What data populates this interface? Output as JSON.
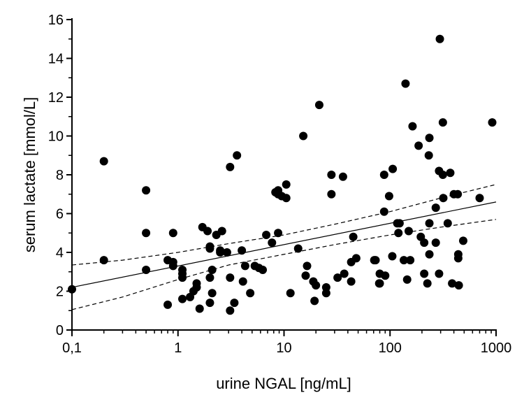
{
  "chart_data": {
    "type": "scatter",
    "title": "",
    "xlabel": "urine NGAL [ng/mL]",
    "ylabel": "serum lactate [mmol/L]",
    "xscale": "log",
    "xlim": [
      0.1,
      1000
    ],
    "ylim": [
      0,
      16
    ],
    "xticks": [
      0.1,
      1,
      10,
      100,
      1000
    ],
    "xtick_labels": [
      "0,1",
      "1",
      "10",
      "100",
      "1000"
    ],
    "yticks": [
      0,
      2,
      4,
      6,
      8,
      10,
      12,
      14,
      16
    ],
    "ytick_labels": [
      "0",
      "2",
      "4",
      "6",
      "8",
      "10",
      "12",
      "14",
      "16"
    ],
    "grid": false,
    "marker_color": "#000000",
    "points": [
      [
        0.1,
        2.1
      ],
      [
        0.2,
        8.7
      ],
      [
        0.2,
        3.6
      ],
      [
        0.5,
        7.2
      ],
      [
        0.5,
        5.0
      ],
      [
        0.5,
        3.1
      ],
      [
        0.9,
        5.0
      ],
      [
        0.8,
        1.3
      ],
      [
        0.8,
        3.6
      ],
      [
        0.9,
        3.5
      ],
      [
        0.9,
        3.3
      ],
      [
        1.1,
        3.1
      ],
      [
        1.1,
        2.9
      ],
      [
        1.1,
        2.7
      ],
      [
        1.1,
        1.6
      ],
      [
        1.3,
        1.7
      ],
      [
        1.4,
        2.0
      ],
      [
        1.5,
        2.4
      ],
      [
        1.5,
        2.2
      ],
      [
        1.6,
        1.1
      ],
      [
        1.7,
        5.3
      ],
      [
        1.9,
        5.1
      ],
      [
        2.0,
        4.3
      ],
      [
        2.0,
        4.2
      ],
      [
        2.0,
        2.7
      ],
      [
        2.1,
        1.9
      ],
      [
        2.0,
        1.4
      ],
      [
        2.1,
        3.1
      ],
      [
        2.3,
        4.9
      ],
      [
        2.5,
        4.1
      ],
      [
        2.5,
        4.0
      ],
      [
        2.6,
        5.1
      ],
      [
        2.9,
        4.0
      ],
      [
        3.1,
        8.4
      ],
      [
        3.1,
        2.7
      ],
      [
        3.1,
        1.0
      ],
      [
        3.4,
        1.4
      ],
      [
        3.6,
        9.0
      ],
      [
        4.0,
        4.1
      ],
      [
        4.1,
        2.5
      ],
      [
        4.3,
        3.3
      ],
      [
        4.8,
        1.9
      ],
      [
        5.3,
        3.3
      ],
      [
        5.8,
        3.2
      ],
      [
        6.3,
        3.1
      ],
      [
        6.8,
        4.9
      ],
      [
        7.7,
        4.5
      ],
      [
        8.3,
        7.1
      ],
      [
        8.8,
        7.2
      ],
      [
        8.8,
        7.0
      ],
      [
        8.8,
        5.0
      ],
      [
        9.5,
        6.9
      ],
      [
        10.5,
        7.5
      ],
      [
        10.5,
        6.8
      ],
      [
        11.5,
        1.9
      ],
      [
        13.6,
        4.2
      ],
      [
        15.2,
        10.0
      ],
      [
        16,
        2.8
      ],
      [
        16.5,
        3.3
      ],
      [
        18.9,
        2.5
      ],
      [
        19.4,
        1.5
      ],
      [
        20,
        2.3
      ],
      [
        21.5,
        11.6
      ],
      [
        25,
        2.2
      ],
      [
        25,
        1.9
      ],
      [
        28,
        8.0
      ],
      [
        28,
        7.0
      ],
      [
        32,
        2.7
      ],
      [
        36,
        7.9
      ],
      [
        37,
        2.9
      ],
      [
        43,
        3.5
      ],
      [
        48,
        3.7
      ],
      [
        45,
        4.8
      ],
      [
        43,
        2.5
      ],
      [
        73,
        3.6
      ],
      [
        79,
        2.4
      ],
      [
        88,
        8.0
      ],
      [
        88,
        6.1
      ],
      [
        106,
        8.3
      ],
      [
        98,
        6.9
      ],
      [
        117,
        5.5
      ],
      [
        123,
        5.5
      ],
      [
        120,
        5.0
      ],
      [
        150,
        5.1
      ],
      [
        140,
        12.7
      ],
      [
        163,
        10.5
      ],
      [
        186,
        9.5
      ],
      [
        235,
        9.9
      ],
      [
        232,
        9.0
      ],
      [
        295,
        15.0
      ],
      [
        315,
        10.7
      ],
      [
        290,
        8.2
      ],
      [
        315,
        8.0
      ],
      [
        370,
        8.1
      ],
      [
        270,
        6.3
      ],
      [
        318,
        6.8
      ],
      [
        400,
        7.0
      ],
      [
        435,
        7.0
      ],
      [
        700,
        6.8
      ],
      [
        920,
        10.7
      ],
      [
        235,
        5.5
      ],
      [
        350,
        5.5
      ],
      [
        270,
        4.5
      ],
      [
        195,
        4.8
      ],
      [
        210,
        4.5
      ],
      [
        235,
        3.9
      ],
      [
        490,
        4.6
      ],
      [
        440,
        3.9
      ],
      [
        440,
        3.7
      ],
      [
        210,
        2.9
      ],
      [
        290,
        2.9
      ],
      [
        225,
        2.4
      ],
      [
        385,
        2.4
      ],
      [
        445,
        2.3
      ],
      [
        135,
        3.6
      ],
      [
        155,
        3.6
      ],
      [
        145,
        2.6
      ],
      [
        105,
        3.8
      ],
      [
        71,
        3.6
      ],
      [
        80,
        2.9
      ],
      [
        90,
        2.8
      ],
      [
        80,
        2.4
      ]
    ],
    "regression": {
      "intercept": 3.3,
      "slope_per_log10": 1.1,
      "style": "solid"
    },
    "confidence_band": {
      "style": "dashed",
      "x": [
        0.1,
        0.3,
        1,
        3,
        10,
        30,
        100,
        300,
        1000
      ],
      "upper": [
        3.35,
        3.6,
        4.0,
        4.45,
        4.9,
        5.45,
        6.1,
        6.8,
        7.5
      ],
      "lower": [
        1.05,
        1.7,
        2.6,
        3.35,
        3.9,
        4.4,
        4.9,
        5.3,
        5.7
      ]
    }
  }
}
